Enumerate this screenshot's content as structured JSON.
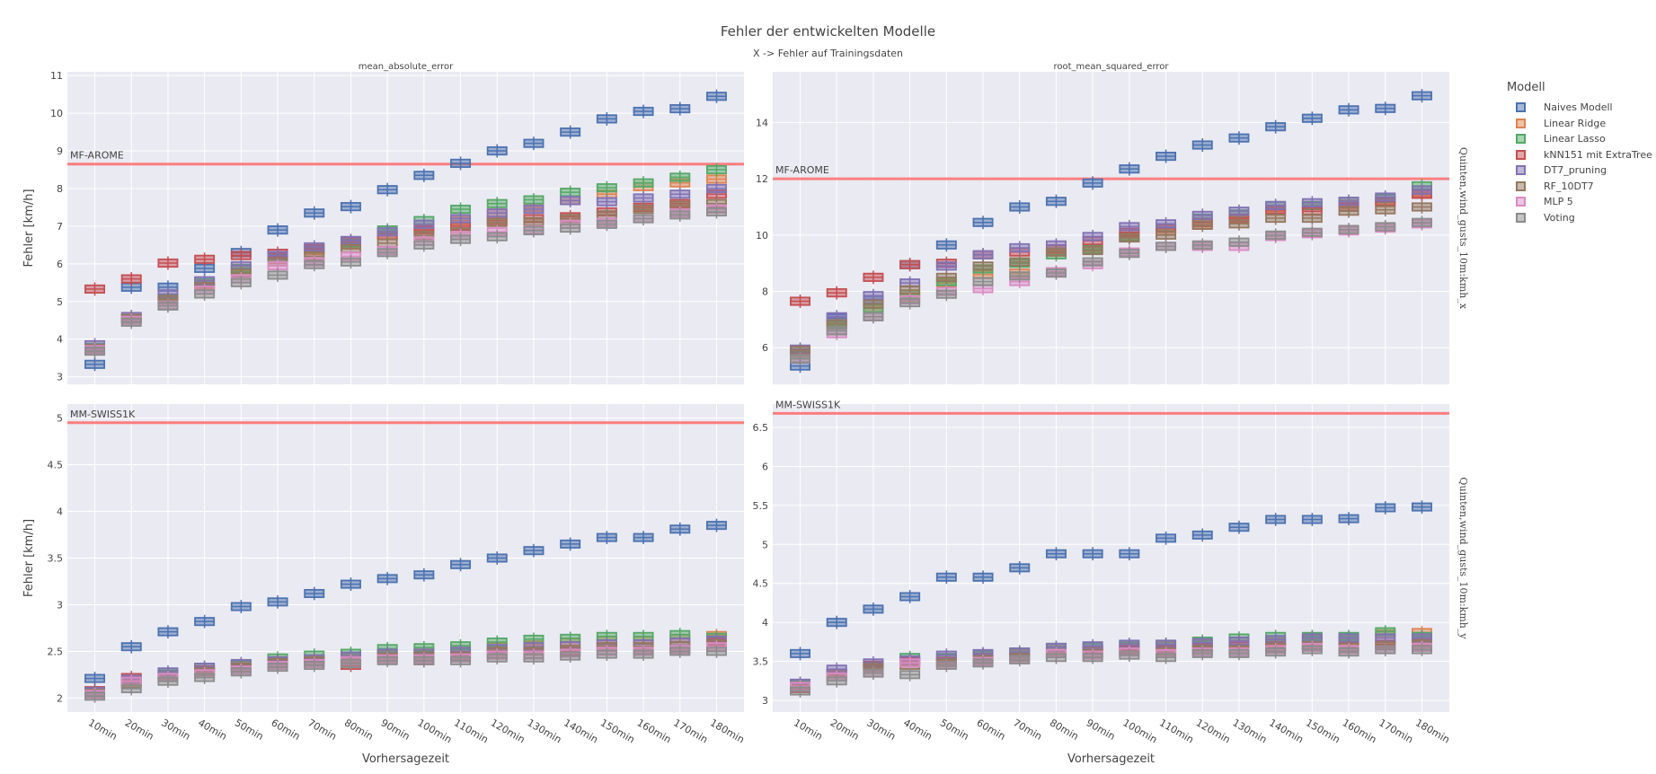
{
  "chart_data": {
    "type": "box",
    "title": "Fehler der entwickelten Modelle",
    "subtitle": "X -> Fehler auf Trainingsdaten",
    "xlabel": "Vorhersagezeit",
    "ylabel": "Fehler [km/h]",
    "categories": [
      "10min",
      "20min",
      "30min",
      "40min",
      "50min",
      "60min",
      "70min",
      "80min",
      "90min",
      "100min",
      "110min",
      "120min",
      "130min",
      "140min",
      "150min",
      "160min",
      "170min",
      "180min"
    ],
    "legend": {
      "title": "Modell",
      "placement": "right",
      "items": [
        {
          "name": "Naives Modell",
          "color": "#4c72b0"
        },
        {
          "name": "Linear Ridge",
          "color": "#dd8452"
        },
        {
          "name": "Linear Lasso",
          "color": "#55a868"
        },
        {
          "name": "kNN151 mit ExtraTree",
          "color": "#c44e52"
        },
        {
          "name": "DT7_pruning",
          "color": "#8172b3"
        },
        {
          "name": "RF_10DT7",
          "color": "#937860"
        },
        {
          "name": "MLP 5",
          "color": "#da8bc3"
        },
        {
          "name": "Voting",
          "color": "#8c8c8c"
        }
      ]
    },
    "panels": [
      {
        "id": "top-left",
        "column_title": "mean_absolute_error",
        "row_title": "",
        "ylim": [
          2.8,
          11.1
        ],
        "yticks": [
          3,
          4,
          5,
          6,
          7,
          8,
          9,
          10,
          11
        ],
        "reference": {
          "label": "MF-AROME",
          "value": 8.65
        },
        "medians": {
          "Naives Modell": [
            3.33,
            5.38,
            5.38,
            5.88,
            6.3,
            6.9,
            7.35,
            7.52,
            7.97,
            8.35,
            8.67,
            9.0,
            9.2,
            9.5,
            9.85,
            10.05,
            10.12,
            10.45
          ],
          "Linear Ridge": [
            3.78,
            4.55,
            5.08,
            5.45,
            5.85,
            6.12,
            6.35,
            6.5,
            6.75,
            6.95,
            7.15,
            7.35,
            7.5,
            7.68,
            7.85,
            8.05,
            8.15,
            8.25
          ],
          "Linear Lasso": [
            3.78,
            4.55,
            5.08,
            5.5,
            5.88,
            6.15,
            6.4,
            6.55,
            6.9,
            7.15,
            7.45,
            7.6,
            7.7,
            7.9,
            8.02,
            8.15,
            8.3,
            8.5
          ],
          "kNN151 mit ExtraTree": [
            5.33,
            5.6,
            6.02,
            6.12,
            6.22,
            6.28,
            6.4,
            6.6,
            6.75,
            6.9,
            7.0,
            7.15,
            7.2,
            7.25,
            7.38,
            7.5,
            7.6,
            7.85
          ],
          "DT7_pruning": [
            3.85,
            4.6,
            5.2,
            5.55,
            5.95,
            6.22,
            6.45,
            6.62,
            6.85,
            7.05,
            7.2,
            7.35,
            7.45,
            7.68,
            7.65,
            7.75,
            7.85,
            8.0
          ],
          "RF_10DT7": [
            3.75,
            4.55,
            5.05,
            5.4,
            5.75,
            6.05,
            6.2,
            6.4,
            6.55,
            6.75,
            6.85,
            7.1,
            7.12,
            7.2,
            7.3,
            7.45,
            7.55,
            7.6
          ],
          "MLP 5": [
            3.72,
            4.5,
            4.9,
            5.3,
            5.6,
            5.95,
            6.05,
            6.2,
            6.35,
            6.6,
            6.75,
            6.85,
            6.9,
            7.05,
            7.1,
            7.2,
            7.35,
            7.45
          ],
          "Voting": [
            3.68,
            4.45,
            4.88,
            5.2,
            5.5,
            5.7,
            5.98,
            6.05,
            6.3,
            6.5,
            6.65,
            6.72,
            6.88,
            6.95,
            7.05,
            7.2,
            7.3,
            7.38
          ]
        }
      },
      {
        "id": "top-right",
        "column_title": "root_mean_squared_error",
        "row_title": "Quinten,wind_gusts_10m:kmh_x",
        "ylim": [
          4.7,
          15.8
        ],
        "yticks": [
          6,
          8,
          10,
          12,
          14
        ],
        "reference": {
          "label": "MF-AROME",
          "value": 12.0
        },
        "medians": {
          "Naives Modell": [
            5.35,
            7.05,
            7.7,
            8.95,
            9.65,
            10.45,
            11.0,
            11.2,
            11.85,
            12.35,
            12.8,
            13.2,
            13.45,
            13.85,
            14.15,
            14.45,
            14.5,
            14.95
          ],
          "Linear Ridge": [
            5.8,
            6.8,
            7.4,
            7.8,
            8.3,
            8.6,
            8.65,
            9.4,
            9.5,
            9.9,
            10.15,
            10.35,
            10.55,
            10.85,
            11.05,
            11.1,
            11.15,
            11.5
          ],
          "Linear Lasso": [
            5.75,
            6.8,
            7.4,
            7.9,
            8.35,
            8.8,
            9.0,
            9.3,
            9.5,
            9.95,
            10.25,
            10.6,
            10.75,
            11.05,
            11.05,
            11.2,
            11.3,
            11.75
          ],
          "kNN151 mit ExtraTree": [
            7.65,
            7.95,
            8.5,
            8.95,
            9.0,
            9.3,
            9.4,
            9.5,
            9.8,
            10.1,
            10.25,
            10.45,
            10.6,
            10.9,
            10.85,
            11.0,
            11.2,
            11.45
          ],
          "DT7_pruning": [
            5.95,
            7.1,
            7.85,
            8.3,
            8.9,
            9.3,
            9.55,
            9.65,
            9.95,
            10.3,
            10.4,
            10.7,
            10.85,
            11.05,
            11.15,
            11.2,
            11.35,
            11.6
          ],
          "RF_10DT7": [
            5.9,
            6.85,
            7.55,
            8.05,
            8.5,
            8.9,
            9.05,
            9.4,
            9.45,
            9.9,
            10.0,
            10.35,
            10.4,
            10.6,
            10.6,
            10.85,
            10.9,
            11.0
          ],
          "MLP 5": [
            5.6,
            6.5,
            7.1,
            7.7,
            8.0,
            8.1,
            8.35,
            8.7,
            8.95,
            9.4,
            9.6,
            9.6,
            9.6,
            9.95,
            10.05,
            10.15,
            10.25,
            10.4
          ],
          "Voting": [
            5.6,
            6.6,
            7.1,
            7.6,
            7.9,
            8.35,
            8.55,
            8.65,
            9.05,
            9.35,
            9.6,
            9.65,
            9.75,
            10.0,
            10.1,
            10.2,
            10.3,
            10.45
          ]
        }
      },
      {
        "id": "bottom-left",
        "column_title": "",
        "row_title": "",
        "ylim": [
          1.85,
          5.15
        ],
        "yticks": [
          2,
          2.5,
          3,
          3.5,
          4,
          4.5,
          5
        ],
        "reference": {
          "label": "MM-SWISS1K",
          "value": 4.95
        },
        "medians": {
          "Naives Modell": [
            2.21,
            2.55,
            2.71,
            2.82,
            2.98,
            3.03,
            3.12,
            3.22,
            3.28,
            3.32,
            3.43,
            3.5,
            3.58,
            3.65,
            3.72,
            3.72,
            3.81,
            3.85
          ],
          "Linear Ridge": [
            2.05,
            2.17,
            2.25,
            2.3,
            2.35,
            2.4,
            2.42,
            2.43,
            2.47,
            2.5,
            2.52,
            2.55,
            2.57,
            2.6,
            2.62,
            2.62,
            2.64,
            2.67
          ],
          "Linear Lasso": [
            2.05,
            2.18,
            2.26,
            2.33,
            2.36,
            2.43,
            2.46,
            2.48,
            2.53,
            2.54,
            2.56,
            2.6,
            2.63,
            2.64,
            2.66,
            2.66,
            2.68,
            2.65
          ],
          "kNN151 mit ExtraTree": [
            2.08,
            2.22,
            2.22,
            2.3,
            2.33,
            2.37,
            2.39,
            2.35,
            2.42,
            2.4,
            2.43,
            2.46,
            2.5,
            2.5,
            2.55,
            2.5,
            2.52,
            2.6
          ],
          "DT7_pruning": [
            2.07,
            2.2,
            2.28,
            2.33,
            2.37,
            2.4,
            2.42,
            2.45,
            2.48,
            2.48,
            2.5,
            2.53,
            2.55,
            2.56,
            2.58,
            2.58,
            2.6,
            2.62
          ],
          "RF_10DT7": [
            2.05,
            2.15,
            2.22,
            2.28,
            2.33,
            2.38,
            2.4,
            2.4,
            2.44,
            2.45,
            2.45,
            2.5,
            2.5,
            2.52,
            2.55,
            2.55,
            2.56,
            2.58
          ],
          "MLP 5": [
            2.04,
            2.18,
            2.22,
            2.26,
            2.3,
            2.35,
            2.37,
            2.4,
            2.42,
            2.42,
            2.43,
            2.46,
            2.46,
            2.48,
            2.5,
            2.5,
            2.52,
            2.55
          ],
          "Voting": [
            2.02,
            2.1,
            2.18,
            2.22,
            2.28,
            2.33,
            2.35,
            2.37,
            2.4,
            2.4,
            2.4,
            2.43,
            2.43,
            2.45,
            2.47,
            2.47,
            2.5,
            2.5
          ]
        }
      },
      {
        "id": "bottom-right",
        "column_title": "",
        "row_title": "Quinten,wind_gusts_10m:kmh_y",
        "ylim": [
          2.85,
          6.8
        ],
        "yticks": [
          3,
          3.5,
          4,
          4.5,
          5,
          5.5,
          6,
          6.5
        ],
        "reference": {
          "label": "MM-SWISS1K",
          "value": 6.68
        },
        "medians": {
          "Naives Modell": [
            3.6,
            4.0,
            4.17,
            4.33,
            4.58,
            4.58,
            4.7,
            4.88,
            4.88,
            4.88,
            5.08,
            5.12,
            5.22,
            5.32,
            5.32,
            5.33,
            5.47,
            5.48
          ],
          "Linear Ridge": [
            3.2,
            3.35,
            3.45,
            3.5,
            3.55,
            3.58,
            3.6,
            3.65,
            3.65,
            3.68,
            3.7,
            3.72,
            3.72,
            3.75,
            3.78,
            3.78,
            3.85,
            3.87
          ],
          "Linear Lasso": [
            3.2,
            3.35,
            3.45,
            3.55,
            3.55,
            3.58,
            3.62,
            3.68,
            3.68,
            3.7,
            3.72,
            3.76,
            3.8,
            3.82,
            3.82,
            3.82,
            3.88,
            3.82
          ],
          "kNN151 mit ExtraTree": [
            3.15,
            3.35,
            3.45,
            3.5,
            3.5,
            3.55,
            3.55,
            3.6,
            3.65,
            3.65,
            3.65,
            3.68,
            3.7,
            3.7,
            3.7,
            3.7,
            3.72,
            3.75
          ],
          "DT7_pruning": [
            3.22,
            3.4,
            3.48,
            3.52,
            3.58,
            3.6,
            3.62,
            3.68,
            3.7,
            3.72,
            3.72,
            3.74,
            3.76,
            3.78,
            3.8,
            3.8,
            3.8,
            3.8
          ],
          "RF_10DT7": [
            3.18,
            3.3,
            3.42,
            3.45,
            3.48,
            3.52,
            3.55,
            3.6,
            3.6,
            3.62,
            3.62,
            3.65,
            3.65,
            3.68,
            3.7,
            3.68,
            3.7,
            3.72
          ],
          "MLP 5": [
            3.18,
            3.3,
            3.35,
            3.48,
            3.45,
            3.5,
            3.52,
            3.6,
            3.58,
            3.62,
            3.6,
            3.62,
            3.62,
            3.65,
            3.68,
            3.65,
            3.65,
            3.68
          ],
          "Voting": [
            3.12,
            3.25,
            3.35,
            3.33,
            3.45,
            3.48,
            3.52,
            3.55,
            3.55,
            3.58,
            3.55,
            3.6,
            3.6,
            3.62,
            3.65,
            3.62,
            3.65,
            3.65
          ]
        }
      }
    ]
  }
}
